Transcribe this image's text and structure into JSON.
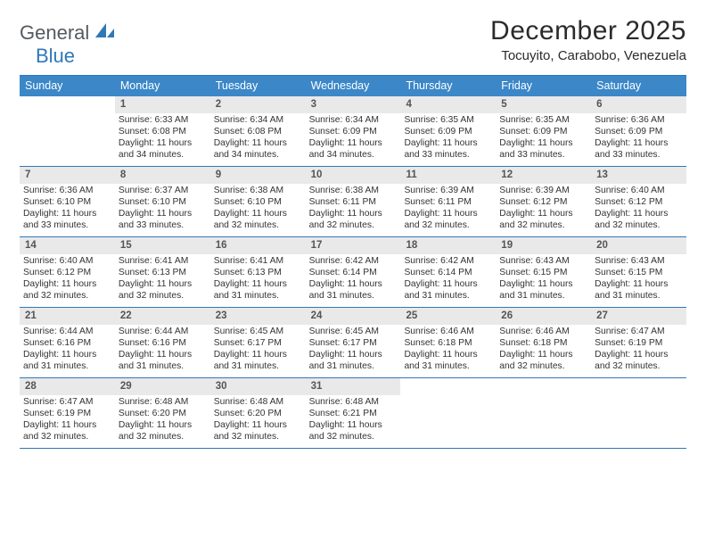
{
  "logo": {
    "text_general": "General",
    "text_blue": "Blue",
    "triangle_color": "#2f78b7"
  },
  "title": "December 2025",
  "location": "Tocuyito, Carabobo, Venezuela",
  "colors": {
    "header_bg": "#3b87c8",
    "header_text": "#ffffff",
    "border": "#2f78b7",
    "daynum_bg": "#e9e9e9",
    "daynum_text": "#555555",
    "body_text": "#333333",
    "page_bg": "#ffffff"
  },
  "weekdays": [
    "Sunday",
    "Monday",
    "Tuesday",
    "Wednesday",
    "Thursday",
    "Friday",
    "Saturday"
  ],
  "weeks": [
    [
      {
        "num": "",
        "sunrise": "",
        "sunset": "",
        "daylight": ""
      },
      {
        "num": "1",
        "sunrise": "Sunrise: 6:33 AM",
        "sunset": "Sunset: 6:08 PM",
        "daylight": "Daylight: 11 hours and 34 minutes."
      },
      {
        "num": "2",
        "sunrise": "Sunrise: 6:34 AM",
        "sunset": "Sunset: 6:08 PM",
        "daylight": "Daylight: 11 hours and 34 minutes."
      },
      {
        "num": "3",
        "sunrise": "Sunrise: 6:34 AM",
        "sunset": "Sunset: 6:09 PM",
        "daylight": "Daylight: 11 hours and 34 minutes."
      },
      {
        "num": "4",
        "sunrise": "Sunrise: 6:35 AM",
        "sunset": "Sunset: 6:09 PM",
        "daylight": "Daylight: 11 hours and 33 minutes."
      },
      {
        "num": "5",
        "sunrise": "Sunrise: 6:35 AM",
        "sunset": "Sunset: 6:09 PM",
        "daylight": "Daylight: 11 hours and 33 minutes."
      },
      {
        "num": "6",
        "sunrise": "Sunrise: 6:36 AM",
        "sunset": "Sunset: 6:09 PM",
        "daylight": "Daylight: 11 hours and 33 minutes."
      }
    ],
    [
      {
        "num": "7",
        "sunrise": "Sunrise: 6:36 AM",
        "sunset": "Sunset: 6:10 PM",
        "daylight": "Daylight: 11 hours and 33 minutes."
      },
      {
        "num": "8",
        "sunrise": "Sunrise: 6:37 AM",
        "sunset": "Sunset: 6:10 PM",
        "daylight": "Daylight: 11 hours and 33 minutes."
      },
      {
        "num": "9",
        "sunrise": "Sunrise: 6:38 AM",
        "sunset": "Sunset: 6:10 PM",
        "daylight": "Daylight: 11 hours and 32 minutes."
      },
      {
        "num": "10",
        "sunrise": "Sunrise: 6:38 AM",
        "sunset": "Sunset: 6:11 PM",
        "daylight": "Daylight: 11 hours and 32 minutes."
      },
      {
        "num": "11",
        "sunrise": "Sunrise: 6:39 AM",
        "sunset": "Sunset: 6:11 PM",
        "daylight": "Daylight: 11 hours and 32 minutes."
      },
      {
        "num": "12",
        "sunrise": "Sunrise: 6:39 AM",
        "sunset": "Sunset: 6:12 PM",
        "daylight": "Daylight: 11 hours and 32 minutes."
      },
      {
        "num": "13",
        "sunrise": "Sunrise: 6:40 AM",
        "sunset": "Sunset: 6:12 PM",
        "daylight": "Daylight: 11 hours and 32 minutes."
      }
    ],
    [
      {
        "num": "14",
        "sunrise": "Sunrise: 6:40 AM",
        "sunset": "Sunset: 6:12 PM",
        "daylight": "Daylight: 11 hours and 32 minutes."
      },
      {
        "num": "15",
        "sunrise": "Sunrise: 6:41 AM",
        "sunset": "Sunset: 6:13 PM",
        "daylight": "Daylight: 11 hours and 32 minutes."
      },
      {
        "num": "16",
        "sunrise": "Sunrise: 6:41 AM",
        "sunset": "Sunset: 6:13 PM",
        "daylight": "Daylight: 11 hours and 31 minutes."
      },
      {
        "num": "17",
        "sunrise": "Sunrise: 6:42 AM",
        "sunset": "Sunset: 6:14 PM",
        "daylight": "Daylight: 11 hours and 31 minutes."
      },
      {
        "num": "18",
        "sunrise": "Sunrise: 6:42 AM",
        "sunset": "Sunset: 6:14 PM",
        "daylight": "Daylight: 11 hours and 31 minutes."
      },
      {
        "num": "19",
        "sunrise": "Sunrise: 6:43 AM",
        "sunset": "Sunset: 6:15 PM",
        "daylight": "Daylight: 11 hours and 31 minutes."
      },
      {
        "num": "20",
        "sunrise": "Sunrise: 6:43 AM",
        "sunset": "Sunset: 6:15 PM",
        "daylight": "Daylight: 11 hours and 31 minutes."
      }
    ],
    [
      {
        "num": "21",
        "sunrise": "Sunrise: 6:44 AM",
        "sunset": "Sunset: 6:16 PM",
        "daylight": "Daylight: 11 hours and 31 minutes."
      },
      {
        "num": "22",
        "sunrise": "Sunrise: 6:44 AM",
        "sunset": "Sunset: 6:16 PM",
        "daylight": "Daylight: 11 hours and 31 minutes."
      },
      {
        "num": "23",
        "sunrise": "Sunrise: 6:45 AM",
        "sunset": "Sunset: 6:17 PM",
        "daylight": "Daylight: 11 hours and 31 minutes."
      },
      {
        "num": "24",
        "sunrise": "Sunrise: 6:45 AM",
        "sunset": "Sunset: 6:17 PM",
        "daylight": "Daylight: 11 hours and 31 minutes."
      },
      {
        "num": "25",
        "sunrise": "Sunrise: 6:46 AM",
        "sunset": "Sunset: 6:18 PM",
        "daylight": "Daylight: 11 hours and 31 minutes."
      },
      {
        "num": "26",
        "sunrise": "Sunrise: 6:46 AM",
        "sunset": "Sunset: 6:18 PM",
        "daylight": "Daylight: 11 hours and 32 minutes."
      },
      {
        "num": "27",
        "sunrise": "Sunrise: 6:47 AM",
        "sunset": "Sunset: 6:19 PM",
        "daylight": "Daylight: 11 hours and 32 minutes."
      }
    ],
    [
      {
        "num": "28",
        "sunrise": "Sunrise: 6:47 AM",
        "sunset": "Sunset: 6:19 PM",
        "daylight": "Daylight: 11 hours and 32 minutes."
      },
      {
        "num": "29",
        "sunrise": "Sunrise: 6:48 AM",
        "sunset": "Sunset: 6:20 PM",
        "daylight": "Daylight: 11 hours and 32 minutes."
      },
      {
        "num": "30",
        "sunrise": "Sunrise: 6:48 AM",
        "sunset": "Sunset: 6:20 PM",
        "daylight": "Daylight: 11 hours and 32 minutes."
      },
      {
        "num": "31",
        "sunrise": "Sunrise: 6:48 AM",
        "sunset": "Sunset: 6:21 PM",
        "daylight": "Daylight: 11 hours and 32 minutes."
      },
      {
        "num": "",
        "sunrise": "",
        "sunset": "",
        "daylight": ""
      },
      {
        "num": "",
        "sunrise": "",
        "sunset": "",
        "daylight": ""
      },
      {
        "num": "",
        "sunrise": "",
        "sunset": "",
        "daylight": ""
      }
    ]
  ]
}
